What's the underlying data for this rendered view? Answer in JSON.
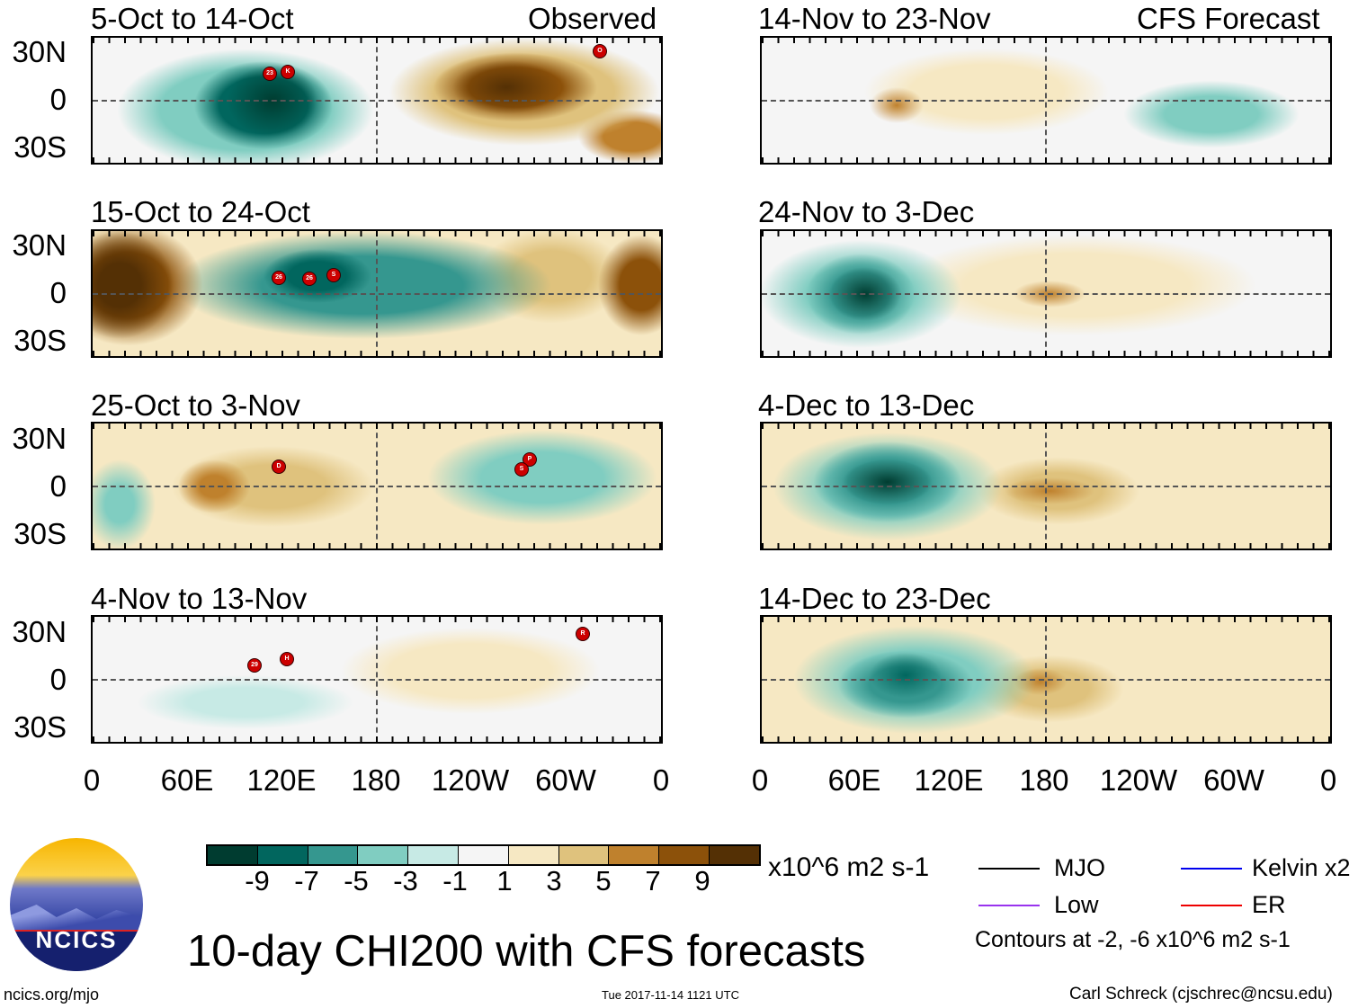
{
  "left_column": {
    "label": "Observed"
  },
  "right_column": {
    "label": "CFS Forecast"
  },
  "panels": [
    {
      "title": "5-Oct to 14-Oct",
      "storms": [
        "23",
        "K",
        "O"
      ]
    },
    {
      "title": "15-Oct to 24-Oct",
      "storms": [
        "26",
        "26",
        "S"
      ]
    },
    {
      "title": "25-Oct to 3-Nov",
      "storms": [
        "D",
        "P",
        "S"
      ]
    },
    {
      "title": "4-Nov to 13-Nov",
      "storms": [
        "29",
        "H",
        "R"
      ]
    },
    {
      "title": "14-Nov to 23-Nov",
      "storms": []
    },
    {
      "title": "24-Nov to 3-Dec",
      "storms": []
    },
    {
      "title": "4-Dec to 13-Dec",
      "storms": []
    },
    {
      "title": "14-Dec to 23-Dec",
      "storms": []
    }
  ],
  "lat_labels": [
    "30N",
    "0",
    "30S"
  ],
  "lon_labels": [
    "0",
    "60E",
    "120E",
    "180",
    "120W",
    "60W",
    "0"
  ],
  "colorbar": {
    "ticks": [
      "-9",
      "-7",
      "-5",
      "-3",
      "-1",
      "1",
      "3",
      "5",
      "7",
      "9"
    ],
    "colors": [
      "#003c30",
      "#01665e",
      "#35978f",
      "#80cdc1",
      "#c7eae5",
      "#f5f5f5",
      "#f6e8c3",
      "#dfc27d",
      "#bf812d",
      "#8c510a",
      "#543005"
    ],
    "units": "x10^6 m2 s-1"
  },
  "legend": {
    "items": [
      {
        "label": "MJO",
        "color": "#000000"
      },
      {
        "label": "Kelvin x2",
        "color": "#0000ee"
      },
      {
        "label": "Low",
        "color": "#9933ee"
      },
      {
        "label": "ER",
        "color": "#ee0000"
      }
    ],
    "contours_note": "Contours at -2, -6 x10^6 m2 s-1"
  },
  "main_title": "10-day CHI200 with CFS forecasts",
  "logo_text": "NCICS",
  "footer": {
    "url": "ncics.org/mjo",
    "timestamp": "Tue 2017-11-14 1121 UTC",
    "author": "Carl Schreck (cjschrec@ncsu.edu)"
  }
}
